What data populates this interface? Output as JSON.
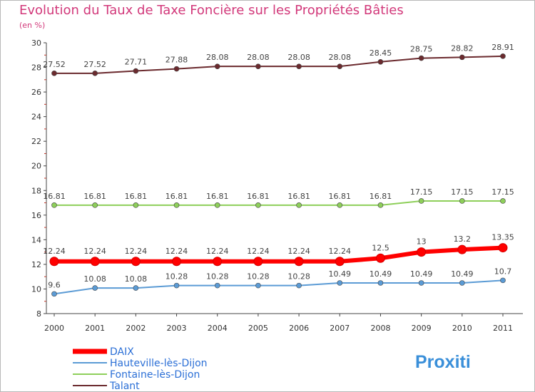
{
  "chart_data": {
    "type": "line",
    "title": "Evolution du Taux de Taxe Foncière sur les Propriétés Bâties",
    "ylabel": "(en %)",
    "categories": [
      "2000",
      "2001",
      "2002",
      "2003",
      "2004",
      "2005",
      "2006",
      "2007",
      "2008",
      "2009",
      "2010",
      "2011"
    ],
    "ylim": [
      8,
      30
    ],
    "yticks": [
      8,
      10,
      12,
      14,
      16,
      18,
      20,
      22,
      24,
      26,
      28,
      30
    ],
    "series": [
      {
        "name": "DAIX",
        "color": "#ff0000",
        "values": [
          12.24,
          12.24,
          12.24,
          12.24,
          12.24,
          12.24,
          12.24,
          12.24,
          12.5,
          13,
          13.2,
          13.35
        ]
      },
      {
        "name": "Hauteville-lès-Dijon",
        "color": "#5b9bd5",
        "values": [
          9.6,
          10.08,
          10.08,
          10.28,
          10.28,
          10.28,
          10.28,
          10.49,
          10.49,
          10.49,
          10.49,
          10.7
        ]
      },
      {
        "name": "Fontaine-lès-Dijon",
        "color": "#8ecf5a",
        "values": [
          16.81,
          16.81,
          16.81,
          16.81,
          16.81,
          16.81,
          16.81,
          16.81,
          16.81,
          17.15,
          17.15,
          17.15
        ]
      },
      {
        "name": "Talant",
        "color": "#6b2a2e",
        "values": [
          27.52,
          27.52,
          27.71,
          27.88,
          28.08,
          28.08,
          28.08,
          28.08,
          28.45,
          28.75,
          28.82,
          28.91
        ]
      }
    ]
  },
  "branding": {
    "logo_text": "Proxiti"
  }
}
